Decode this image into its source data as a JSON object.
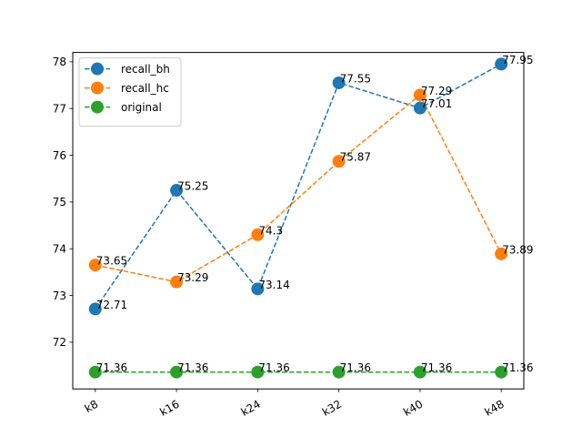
{
  "chart_data": {
    "type": "line",
    "title": "",
    "xlabel": "",
    "ylabel": "",
    "categories": [
      "k8",
      "k16",
      "k24",
      "k32",
      "k40",
      "k48"
    ],
    "ylim": [
      71.0,
      78.2
    ],
    "yticks": [
      72,
      73,
      74,
      75,
      76,
      77,
      78
    ],
    "series": [
      {
        "name": "recall_bh",
        "color": "#1f77b4",
        "values": [
          72.71,
          75.25,
          73.14,
          77.55,
          77.01,
          77.95
        ],
        "labels": [
          "72.71",
          "75.25",
          "73.14",
          "77.55",
          "77.01",
          "77.95"
        ]
      },
      {
        "name": "recall_hc",
        "color": "#ff7f0e",
        "values": [
          73.65,
          73.29,
          74.3,
          75.87,
          77.29,
          73.89
        ],
        "labels": [
          "73.65",
          "73.29",
          "74.3",
          "75.87",
          "77.29",
          "73.89"
        ]
      },
      {
        "name": "original",
        "color": "#2ca02c",
        "values": [
          71.36,
          71.36,
          71.36,
          71.36,
          71.36,
          71.36
        ],
        "labels": [
          "71.36",
          "71.36",
          "71.36",
          "71.36",
          "71.36",
          "71.36"
        ]
      }
    ],
    "line_style": "dashed",
    "marker": "circle",
    "grid": false,
    "legend": "top-left",
    "xtick_rotation": 30
  }
}
